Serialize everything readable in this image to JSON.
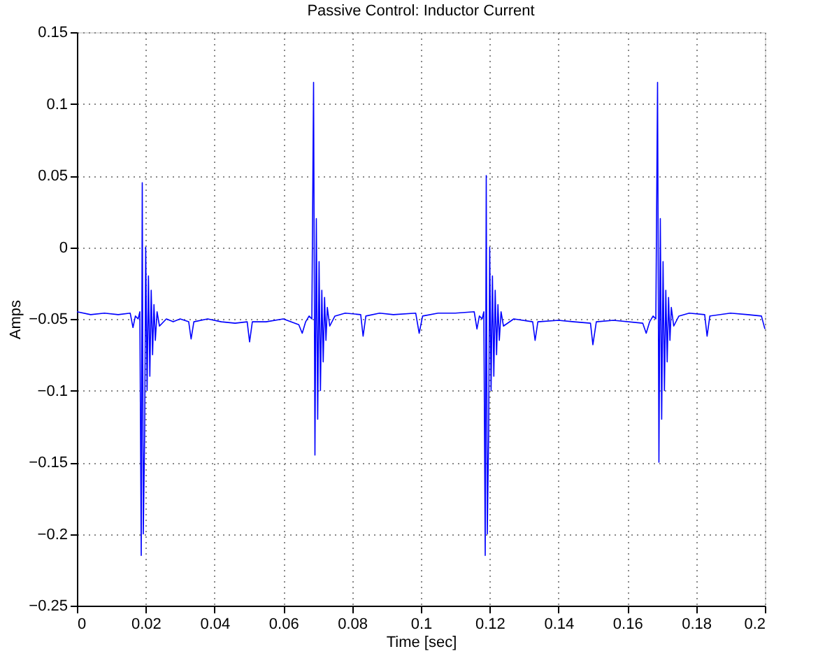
{
  "chart_data": {
    "type": "line",
    "title": "Passive Control: Inductor Current",
    "xlabel": "Time [sec]",
    "ylabel": "Amps",
    "xlim": [
      0,
      0.2
    ],
    "ylim": [
      -0.25,
      0.15
    ],
    "xticks": [
      0,
      0.02,
      0.04,
      0.06,
      0.08,
      0.1,
      0.12,
      0.14,
      0.16,
      0.18,
      0.2
    ],
    "yticks": [
      -0.25,
      -0.2,
      -0.15,
      -0.1,
      -0.05,
      0,
      0.05,
      0.1,
      0.15
    ],
    "grid": true,
    "line_style": "solid",
    "marker": "none",
    "series": [
      {
        "color": "#0000ff",
        "x": [
          0,
          0.004,
          0.008,
          0.012,
          0.0155,
          0.0163,
          0.017,
          0.0178,
          0.0183,
          0.0187,
          0.019,
          0.0193,
          0.0197,
          0.02,
          0.0204,
          0.0208,
          0.0212,
          0.0216,
          0.022,
          0.0224,
          0.0228,
          0.0233,
          0.024,
          0.026,
          0.028,
          0.03,
          0.0325,
          0.0332,
          0.034,
          0.038,
          0.042,
          0.046,
          0.0495,
          0.0502,
          0.051,
          0.055,
          0.06,
          0.0645,
          0.0655,
          0.0665,
          0.0675,
          0.0683,
          0.0688,
          0.0692,
          0.0696,
          0.07,
          0.0704,
          0.0708,
          0.0712,
          0.0716,
          0.072,
          0.0724,
          0.0728,
          0.0735,
          0.075,
          0.078,
          0.0825,
          0.0832,
          0.084,
          0.088,
          0.092,
          0.0985,
          0.0995,
          0.1005,
          0.105,
          0.11,
          0.1155,
          0.1163,
          0.117,
          0.1178,
          0.1183,
          0.1187,
          0.119,
          0.1193,
          0.1197,
          0.12,
          0.1204,
          0.1208,
          0.1212,
          0.1216,
          0.122,
          0.1224,
          0.1228,
          0.1233,
          0.124,
          0.127,
          0.1325,
          0.1332,
          0.134,
          0.14,
          0.1445,
          0.1493,
          0.15,
          0.151,
          0.156,
          0.1645,
          0.1655,
          0.1665,
          0.1675,
          0.1683,
          0.1688,
          0.1692,
          0.1696,
          0.17,
          0.1704,
          0.1708,
          0.1712,
          0.1716,
          0.172,
          0.1724,
          0.1728,
          0.1735,
          0.175,
          0.178,
          0.1825,
          0.1832,
          0.184,
          0.19,
          0.195,
          0.199,
          0.2
        ],
        "values": [
          -0.045,
          -0.047,
          -0.046,
          -0.047,
          -0.046,
          -0.056,
          -0.048,
          -0.05,
          -0.045,
          -0.215,
          0.045,
          -0.2,
          -0.13,
          0.0,
          -0.1,
          -0.02,
          -0.09,
          -0.03,
          -0.075,
          -0.04,
          -0.065,
          -0.045,
          -0.055,
          -0.05,
          -0.052,
          -0.05,
          -0.052,
          -0.064,
          -0.052,
          -0.05,
          -0.052,
          -0.053,
          -0.052,
          -0.066,
          -0.052,
          -0.052,
          -0.05,
          -0.054,
          -0.06,
          -0.052,
          -0.048,
          -0.05,
          0.115,
          -0.145,
          0.02,
          -0.12,
          -0.01,
          -0.1,
          -0.03,
          -0.08,
          -0.035,
          -0.065,
          -0.042,
          -0.055,
          -0.048,
          -0.046,
          -0.047,
          -0.062,
          -0.048,
          -0.046,
          -0.047,
          -0.046,
          -0.06,
          -0.048,
          -0.046,
          -0.046,
          -0.045,
          -0.057,
          -0.048,
          -0.05,
          -0.045,
          -0.215,
          0.05,
          -0.2,
          -0.13,
          0.0,
          -0.1,
          -0.02,
          -0.09,
          -0.03,
          -0.075,
          -0.04,
          -0.065,
          -0.045,
          -0.055,
          -0.05,
          -0.052,
          -0.065,
          -0.052,
          -0.051,
          -0.052,
          -0.053,
          -0.068,
          -0.052,
          -0.051,
          -0.053,
          -0.06,
          -0.052,
          -0.048,
          -0.05,
          0.115,
          -0.15,
          0.02,
          -0.12,
          -0.01,
          -0.1,
          -0.03,
          -0.08,
          -0.035,
          -0.065,
          -0.042,
          -0.055,
          -0.048,
          -0.046,
          -0.047,
          -0.062,
          -0.048,
          -0.046,
          -0.047,
          -0.048,
          -0.057
        ]
      }
    ]
  }
}
